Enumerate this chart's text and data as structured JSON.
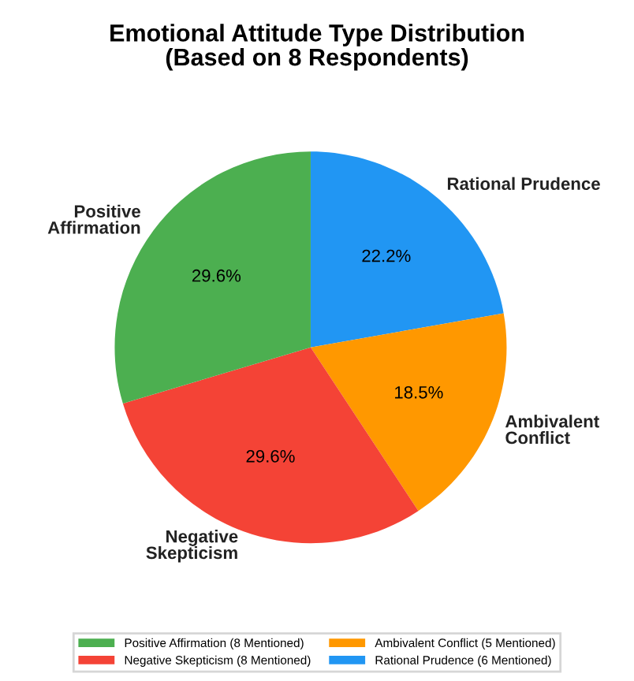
{
  "chart_data": {
    "type": "pie",
    "title": "Emotional Attitude Type Distribution\n(Based on 8 Respondents)",
    "categories": [
      "Rational Prudence (6 Mentioned)",
      "Ambivalent Conflict (5 Mentioned)",
      "Negative Skepticism (8 Mentioned)",
      "Positive Affirmation (8 Mentioned)"
    ],
    "values": [
      22.2,
      18.5,
      29.6,
      29.6
    ],
    "value_labels": [
      "22.2%",
      "18.5%",
      "29.6%",
      "29.6%"
    ],
    "colors": [
      "#2196f3",
      "#ff9800",
      "#f44336",
      "#4caf50"
    ],
    "annotations": [
      "Rational Prudence",
      "Ambivalent\nConflict",
      "Negative\nSkepticism",
      "Positive\nAffirmation"
    ],
    "legend": "bottom"
  }
}
